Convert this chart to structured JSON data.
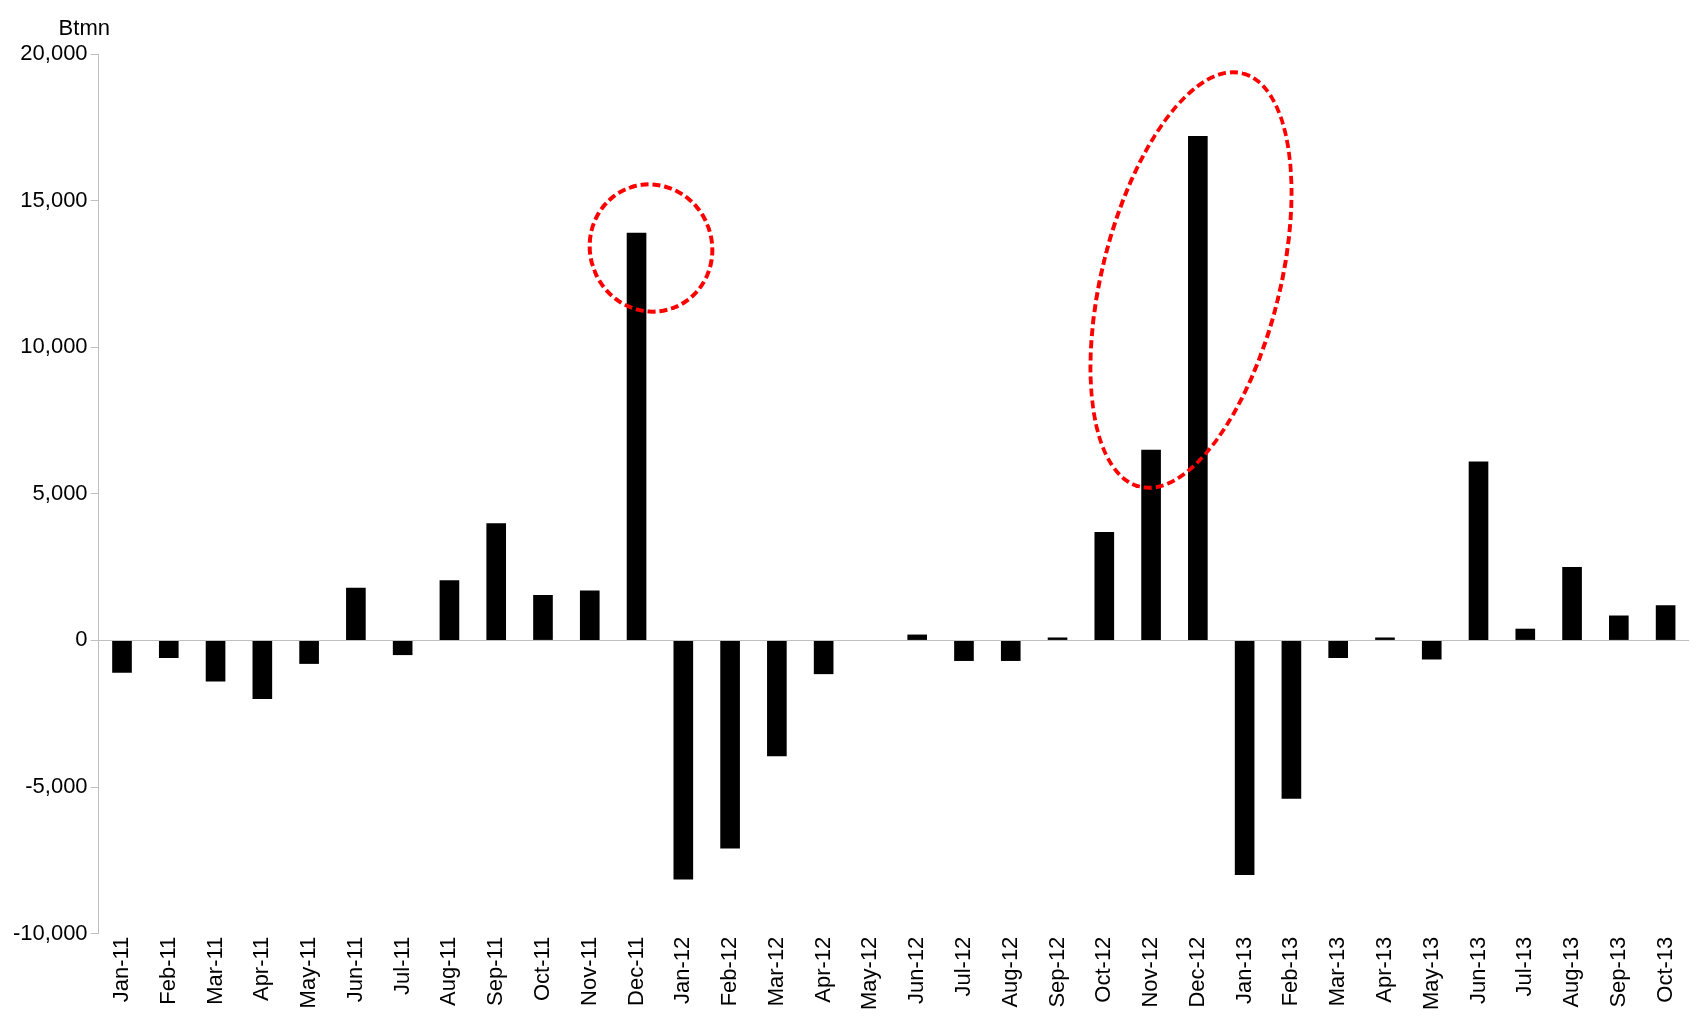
{
  "chart_data": {
    "type": "bar",
    "ylabel": "Btmn",
    "categories": [
      "Jan-11",
      "Feb-11",
      "Mar-11",
      "Apr-11",
      "May-11",
      "Jun-11",
      "Jul-11",
      "Aug-11",
      "Sep-11",
      "Oct-11",
      "Nov-11",
      "Dec-11",
      "Jan-12",
      "Feb-12",
      "Mar-12",
      "Apr-12",
      "May-12",
      "Jun-12",
      "Jul-12",
      "Aug-12",
      "Sep-12",
      "Oct-12",
      "Nov-12",
      "Dec-12",
      "Jan-13",
      "Feb-13",
      "Mar-13",
      "Apr-13",
      "May-13",
      "Jun-13",
      "Jul-13",
      "Aug-13",
      "Sep-13",
      "Oct-13"
    ],
    "values": [
      -1100,
      -600,
      -1400,
      -2000,
      -800,
      1800,
      -500,
      2050,
      4000,
      1550,
      1700,
      13900,
      -8150,
      -7100,
      -3950,
      -1150,
      0,
      200,
      -700,
      -700,
      100,
      3700,
      6500,
      17200,
      -8000,
      -5400,
      -600,
      100,
      -650,
      6100,
      400,
      2500,
      850,
      1200
    ],
    "color": "#000000",
    "ylim": [
      -10000,
      20000
    ],
    "yticks": [
      {
        "value": -10000,
        "label": "-10,000"
      },
      {
        "value": -5000,
        "label": "-5,000"
      },
      0,
      {
        "value": 5000,
        "label": "5,000"
      },
      {
        "value": 10000,
        "label": "10,000"
      },
      {
        "value": 15000,
        "label": "15,000"
      },
      {
        "value": 20000,
        "label": "20,000"
      }
    ],
    "legend": false
  }
}
